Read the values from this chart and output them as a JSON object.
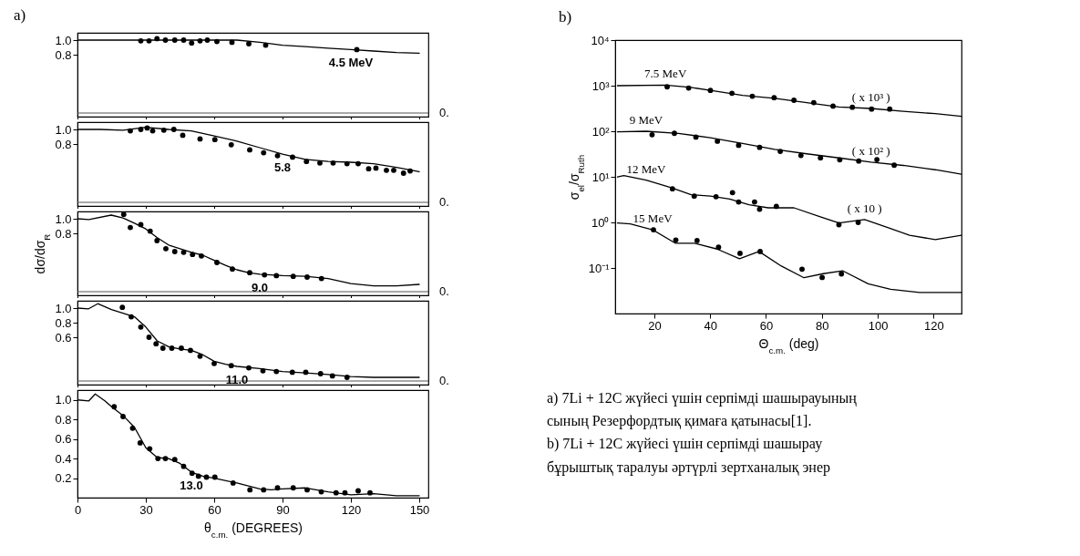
{
  "chart_data": [
    {
      "type": "line",
      "title": "a)",
      "xlim": [
        0,
        154
      ],
      "xticks": [
        0,
        30,
        60,
        90,
        120,
        150
      ],
      "ylim": [
        -0.05,
        1.1
      ],
      "yticks": [
        0.8,
        {
          "value": 1,
          "label": "1.0"
        }
      ],
      "tick_labels": "y",
      "line_style": "solid",
      "series": [
        {
          "type": "line",
          "color": "#000000",
          "x": [
            0,
            20,
            40,
            50,
            60,
            70,
            80,
            90,
            100,
            110,
            120,
            130,
            140,
            150
          ],
          "values": [
            1,
            1,
            1,
            1,
            1,
            1,
            0.97,
            0.93,
            0.91,
            0.89,
            0.87,
            0.85,
            0.83,
            0.82
          ]
        },
        {
          "type": "scatter",
          "marker": "circle",
          "color": "#000000",
          "x": [
            27.8,
            31.4,
            34.9,
            38.6,
            42.7,
            46.6,
            50.1,
            53.8,
            57,
            61.2,
            67.8,
            75.2,
            82.6,
            122.6
          ],
          "values": [
            0.99,
            0.99,
            1.02,
            1,
            1,
            1,
            0.96,
            0.99,
            1,
            0.98,
            0.97,
            0.95,
            0.93,
            0.87
          ]
        }
      ],
      "ref_lines": [
        {
          "axis": "y",
          "value": 0,
          "label": "0."
        }
      ],
      "annotations": [
        {
          "text": "4.5 MeV",
          "x": 120,
          "y": 0.87
        }
      ]
    },
    {
      "type": "line",
      "xlim": [
        0,
        154
      ],
      "xticks": [
        0,
        30,
        60,
        90,
        120,
        150
      ],
      "ylim": [
        -0.05,
        1.1
      ],
      "yticks": [
        0.8,
        {
          "value": 1,
          "label": "1.0"
        }
      ],
      "tick_labels": "y",
      "line_style": "solid",
      "series": [
        {
          "type": "line",
          "color": "#000000",
          "x": [
            0,
            10,
            20,
            30,
            40,
            50,
            60,
            70,
            80,
            90,
            100,
            110,
            120,
            130,
            140,
            150
          ],
          "values": [
            1,
            1,
            0.99,
            1.03,
            1,
            0.98,
            0.91,
            0.84,
            0.75,
            0.66,
            0.59,
            0.56,
            0.55,
            0.53,
            0.48,
            0.42
          ]
        },
        {
          "type": "scatter",
          "marker": "circle",
          "color": "#000000",
          "x": [
            23.2,
            27.8,
            30.6,
            33,
            37.9,
            42.3,
            46.2,
            53.8,
            60.3,
            67.5,
            75.6,
            81.7,
            87.8,
            94.4,
            100.5,
            106.4,
            112.2,
            118.3,
            123.2,
            127.8,
            131,
            135.6,
            138.8,
            143.1,
            146
          ],
          "values": [
            0.98,
            1,
            1.02,
            0.98,
            0.99,
            1,
            0.92,
            0.87,
            0.86,
            0.79,
            0.72,
            0.68,
            0.64,
            0.62,
            0.56,
            0.54,
            0.54,
            0.53,
            0.53,
            0.46,
            0.47,
            0.44,
            0.44,
            0.4,
            0.43
          ]
        }
      ],
      "ref_lines": [
        {
          "axis": "y",
          "value": 0,
          "label": "0."
        }
      ],
      "annotations": [
        {
          "text": "5.8",
          "x": 90,
          "y": 0.66
        }
      ]
    },
    {
      "type": "line",
      "xlim": [
        0,
        154
      ],
      "xticks": [
        0,
        30,
        60,
        90,
        120,
        150
      ],
      "ylim": [
        -0.05,
        1.1
      ],
      "yticks": [
        0.8,
        {
          "value": 1,
          "label": "1.0"
        }
      ],
      "tick_labels": "y",
      "ylabel": "dσ/dσ$_{R}$",
      "line_style": "solid",
      "series": [
        {
          "type": "line",
          "color": "#000000",
          "x": [
            0,
            5,
            14.8,
            20,
            25,
            30,
            35,
            40,
            45,
            50,
            55,
            60,
            65,
            70,
            75,
            80,
            90,
            100,
            110,
            120,
            130,
            140,
            150
          ],
          "values": [
            1,
            0.99,
            1.05,
            1.01,
            0.94,
            0.86,
            0.74,
            0.64,
            0.59,
            0.54,
            0.5,
            0.43,
            0.36,
            0.3,
            0.26,
            0.24,
            0.22,
            0.21,
            0.18,
            0.11,
            0.08,
            0.08,
            0.1
          ]
        },
        {
          "type": "scatter",
          "marker": "circle",
          "color": "#000000",
          "x": [
            20.3,
            23.2,
            27.8,
            31.9,
            34.9,
            38.8,
            42.7,
            46.6,
            50.5,
            54.4,
            61.2,
            68,
            75.6,
            82.1,
            87.3,
            94.7,
            100.8,
            107.1
          ],
          "values": [
            1.06,
            0.88,
            0.92,
            0.83,
            0.7,
            0.59,
            0.55,
            0.54,
            0.51,
            0.49,
            0.4,
            0.31,
            0.26,
            0.23,
            0.22,
            0.21,
            0.2,
            0.18
          ]
        }
      ],
      "ref_lines": [
        {
          "axis": "y",
          "value": 0,
          "label": "0."
        }
      ],
      "annotations": [
        {
          "text": "9.0",
          "x": 80,
          "y": 0.24
        }
      ]
    },
    {
      "type": "line",
      "xlim": [
        0,
        154
      ],
      "xticks": [
        0,
        30,
        60,
        90,
        120,
        150
      ],
      "ylim": [
        -0.05,
        1.1
      ],
      "yticks": [
        0.6,
        0.8,
        {
          "value": 1,
          "label": "1.0"
        }
      ],
      "tick_labels": "y",
      "line_style": "solid",
      "series": [
        {
          "type": "line",
          "color": "#000000",
          "x": [
            0,
            4.9,
            8.9,
            14.9,
            20,
            25,
            30,
            35,
            40,
            45,
            50,
            55,
            60,
            65,
            70,
            80,
            90,
            100,
            110,
            120,
            130,
            140,
            150
          ],
          "values": [
            1,
            0.99,
            1.06,
            0.98,
            0.93,
            0.88,
            0.74,
            0.55,
            0.47,
            0.44,
            0.42,
            0.36,
            0.27,
            0.23,
            0.2,
            0.17,
            0.13,
            0.11,
            0.09,
            0.06,
            0.05,
            0.05,
            0.05
          ]
        },
        {
          "type": "scatter",
          "marker": "circle",
          "color": "#000000",
          "x": [
            19.7,
            23.6,
            27.8,
            31.4,
            34.5,
            37.5,
            41.4,
            45.6,
            49.6,
            53.8,
            60,
            67.5,
            75.2,
            81.4,
            87.3,
            94.3,
            100.2,
            106.7,
            111.9,
            118.3
          ],
          "values": [
            1.01,
            0.88,
            0.74,
            0.6,
            0.51,
            0.45,
            0.45,
            0.45,
            0.42,
            0.34,
            0.24,
            0.21,
            0.18,
            0.14,
            0.13,
            0.12,
            0.12,
            0.1,
            0.07,
            0.05
          ]
        }
      ],
      "ref_lines": [
        {
          "axis": "y",
          "value": 0,
          "label": "0."
        }
      ],
      "annotations": [
        {
          "text": "11.0",
          "x": 70,
          "y": 0.2
        }
      ]
    },
    {
      "type": "line",
      "xlim": [
        0,
        154
      ],
      "xticks": [
        0,
        30,
        60,
        90,
        120,
        150
      ],
      "ylim": [
        0,
        1.1
      ],
      "yticks": [
        0.2,
        0.4,
        0.6,
        0.8,
        {
          "value": 1,
          "label": "1.0"
        }
      ],
      "xlabel": "θ$_{c.m.}$ (DEGREES)",
      "line_style": "solid",
      "series": [
        {
          "type": "line",
          "color": "#000000",
          "x": [
            0,
            5,
            7.8,
            12,
            15,
            20,
            25,
            30,
            35,
            40,
            45,
            50,
            55,
            60,
            70,
            80,
            85,
            90,
            100,
            110,
            120,
            130,
            140,
            150
          ],
          "values": [
            1,
            0.99,
            1.06,
            0.99,
            0.93,
            0.84,
            0.72,
            0.51,
            0.41,
            0.4,
            0.35,
            0.26,
            0.22,
            0.2,
            0.15,
            0.09,
            0.08,
            0.09,
            0.1,
            0.06,
            0.03,
            0.04,
            0.02,
            0.02
          ]
        },
        {
          "type": "scatter",
          "marker": "circle",
          "color": "#000000",
          "x": [
            16.1,
            20,
            24.2,
            27.5,
            31.7,
            35.3,
            38.6,
            42.7,
            46.6,
            50.3,
            53.1,
            56.6,
            60.3,
            68.3,
            75.7,
            81.7,
            87.8,
            94.7,
            100.8,
            107,
            113.5,
            117.4,
            123.2,
            128.4
          ],
          "values": [
            0.93,
            0.83,
            0.71,
            0.56,
            0.5,
            0.4,
            0.4,
            0.39,
            0.32,
            0.25,
            0.22,
            0.21,
            0.21,
            0.15,
            0.08,
            0.08,
            0.1,
            0.1,
            0.08,
            0.06,
            0.05,
            0.05,
            0.07,
            0.05
          ]
        }
      ],
      "annotations": [
        {
          "text": "13.0",
          "x": 50,
          "y": 0.26
        }
      ]
    },
    {
      "type": "line",
      "title": "b)",
      "xlim": [
        6,
        130
      ],
      "xticks": [
        20,
        40,
        60,
        80,
        100,
        120
      ],
      "ylim": [
        0.01,
        10000
      ],
      "log": "y",
      "yticks": [
        {
          "value": 0.1,
          "label": "10⁻¹"
        },
        {
          "value": 1,
          "label": "10⁰"
        },
        {
          "value": 10,
          "label": "10¹"
        },
        {
          "value": 100,
          "label": "10²"
        },
        {
          "value": 1000,
          "label": "10³"
        },
        {
          "value": 10000,
          "label": "10⁴"
        }
      ],
      "xlabel": "Θ$_{c.m.}$ (deg)",
      "ylabel": "σ$_{el}$/σ$_{Ruth}$",
      "line_style": "solid",
      "series": [
        {
          "type": "line",
          "color": "#000000",
          "x": [
            6.8,
            24,
            33.2,
            40.1,
            51.6,
            63.1,
            74.6,
            86.1,
            97.6,
            109.1,
            120.6,
            130
          ],
          "values": [
            1000,
            1030,
            915,
            789,
            614,
            530,
            425,
            341,
            316,
            273,
            243,
            212
          ]
        },
        {
          "type": "scatter",
          "marker": "circle",
          "color": "#000000",
          "x": [
            24.6,
            32.3,
            40.1,
            47.8,
            55.1,
            62.9,
            70,
            77.1,
            84,
            90.9,
            97.8,
            104.3
          ],
          "values": [
            943,
            889,
            789,
            681,
            587,
            546,
            478,
            425,
            356,
            336,
            307,
            307
          ]
        },
        {
          "type": "line",
          "color": "#000000",
          "x": [
            6.8,
            17.1,
            28.6,
            40.1,
            51.6,
            63.1,
            74.6,
            86.1,
            97.6,
            109.1,
            120.6,
            130
          ],
          "values": [
            97,
            100,
            90,
            72,
            54,
            40,
            32,
            26,
            21,
            17.8,
            14.3,
            11.4
          ]
        },
        {
          "type": "scatter",
          "marker": "circle",
          "color": "#000000",
          "x": [
            19.2,
            27.2,
            34.9,
            42.6,
            50.2,
            57.7,
            65.1,
            72.5,
            79.5,
            86.4,
            93.2,
            99.7,
            105.9
          ],
          "values": [
            83.7,
            90,
            74.5,
            60.5,
            49.2,
            44.4,
            36.1,
            29.4,
            26.1,
            23.6,
            22.2,
            23.9,
            18
          ]
        },
        {
          "type": "line",
          "color": "#000000",
          "x": [
            6.8,
            9.1,
            17.1,
            26.3,
            33.2,
            40.1,
            47,
            53.9,
            60.8,
            70,
            79.2,
            86.1,
            95.3,
            104.5,
            111.4,
            120.6,
            130
          ],
          "values": [
            9.9,
            10.6,
            8.5,
            5.7,
            4.06,
            3.78,
            3.26,
            2.43,
            2.09,
            2.09,
            1.34,
            0.97,
            1.16,
            0.74,
            0.52,
            0.42,
            0.52
          ]
        },
        {
          "type": "scatter",
          "marker": "circle",
          "color": "#000000",
          "x": [
            26.5,
            34.3,
            42.1,
            48,
            50.2,
            55.9,
            57.7,
            63.7,
            86.1,
            93
          ],
          "values": [
            5.46,
            3.78,
            3.66,
            4.51,
            2.81,
            2.81,
            1.94,
            2.25,
            0.89,
            1
          ]
        },
        {
          "type": "line",
          "color": "#000000",
          "x": [
            6.8,
            11.4,
            19.4,
            27.5,
            34.4,
            42.5,
            50.5,
            57.5,
            65.5,
            73.6,
            80.5,
            87.4,
            96.6,
            104.6,
            115,
            130
          ],
          "values": [
            0.97,
            0.93,
            0.69,
            0.35,
            0.35,
            0.26,
            0.16,
            0.23,
            0.11,
            0.061,
            0.075,
            0.087,
            0.045,
            0.034,
            0.029,
            0.029
          ]
        },
        {
          "type": "scatter",
          "marker": "circle",
          "color": "#000000",
          "x": [
            19.7,
            27.7,
            35.3,
            43,
            50.7,
            57.9,
            72.9,
            80.1,
            87
          ],
          "values": [
            0.69,
            0.41,
            0.4,
            0.285,
            0.21,
            0.23,
            0.094,
            0.062,
            0.074
          ]
        }
      ],
      "annotations": [
        {
          "text": "7.5 MeV",
          "x": 24,
          "y": 1030
        },
        {
          "text": "9 MeV",
          "x": 17.1,
          "y": 100
        },
        {
          "text": "12 MeV",
          "x": 17.1,
          "y": 8.5
        },
        {
          "text": "15 MeV",
          "x": 19.4,
          "y": 0.69
        },
        {
          "text": "( x 10³ )",
          "x": 97.6,
          "y": 316
        },
        {
          "text": "( x 10² )",
          "x": 97.6,
          "y": 21
        },
        {
          "text": "( x 10 )",
          "x": 95.3,
          "y": 1.16
        },
        "a) 7Li + 12C жүйесі үшін серпімді шашырауының",
        "сының Резерфордтық қимаға қатынасы[1].",
        "b) 7Li + 12C жүйесі үшін серпімді шашырау",
        "бұрыштық таралуы әртүрлі зертханалық энер"
      ]
    }
  ]
}
